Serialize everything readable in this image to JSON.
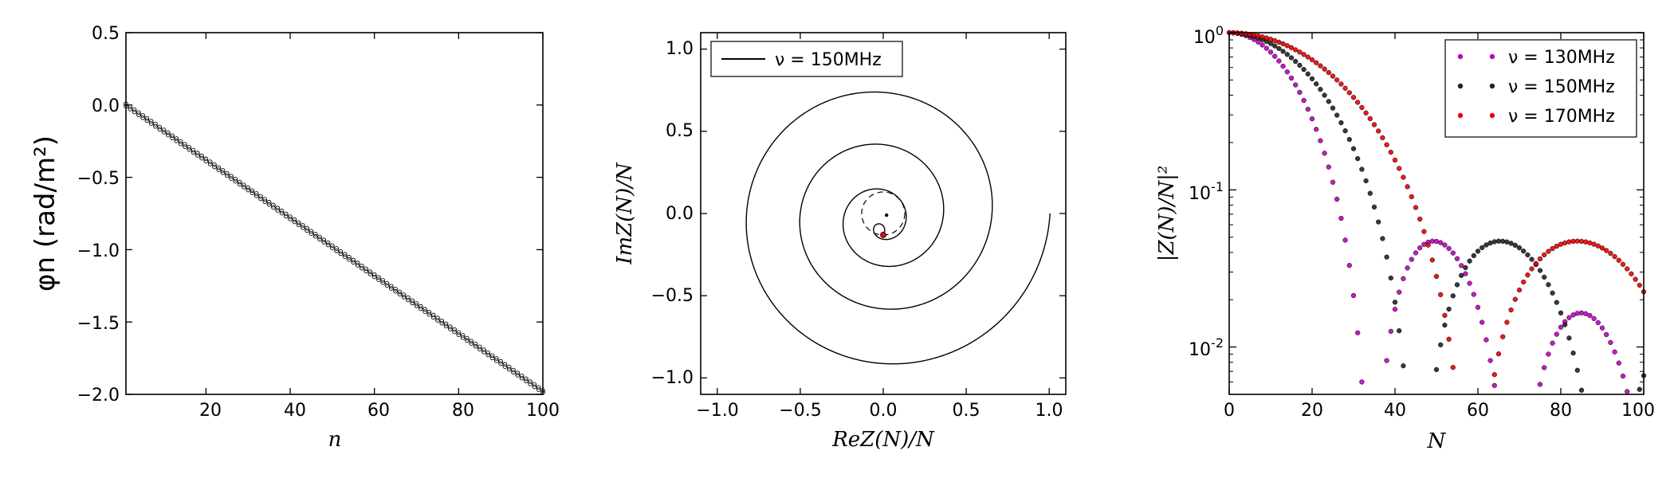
{
  "chart_data": [
    {
      "id": "phase",
      "type": "scatter",
      "xlabel": "n",
      "ylabel": "φn  (rad/m²)",
      "xlim": [
        1,
        100
      ],
      "ylim": [
        -2.0,
        0.5
      ],
      "xticks": [
        "20",
        "40",
        "60",
        "80",
        "100"
      ],
      "yticks": [
        "0.5",
        "0.0",
        "−0.5",
        "−1.0",
        "−1.5",
        "−2.0"
      ],
      "series": [
        {
          "color": "#000000",
          "x_start": 1,
          "x_end": 100,
          "step": 1,
          "y_start": 0.0,
          "y_end": -1.98,
          "marker": "open-circle"
        }
      ],
      "grid": false
    },
    {
      "id": "spiral",
      "type": "line",
      "xlabel": "ReZ(N)/N",
      "ylabel": "ImZ(N)/N",
      "xlim": [
        -1.1,
        1.1
      ],
      "ylim": [
        -1.1,
        1.1
      ],
      "xticks": [
        "−1.0",
        "−0.5",
        "0.0",
        "0.5",
        "1.0"
      ],
      "yticks": [
        "1.0",
        "0.5",
        "0.0",
        "−0.5",
        "−1.0"
      ],
      "legend": [
        {
          "label": "ν = 150MHz",
          "color": "#000000",
          "style": "solid line"
        }
      ],
      "legend_position": "top-left",
      "series": [
        {
          "name": "ν = 150MHz",
          "color": "#000000",
          "curve": "cornu-spiral",
          "start": [
            1.0,
            0.0
          ],
          "end_marker": [
            0.0,
            -0.13
          ]
        }
      ],
      "dashed_circle": {
        "center": [
          0.0,
          0.0
        ],
        "radius": 0.13
      },
      "grid": false
    },
    {
      "id": "amplitude",
      "type": "scatter",
      "xlabel": "N",
      "ylabel": "|Z(N)/N|²",
      "xlim": [
        0,
        100
      ],
      "ylim": [
        0.005,
        1.0
      ],
      "yscale": "log",
      "xticks": [
        "0",
        "20",
        "40",
        "60",
        "80",
        "100"
      ],
      "yticks": [
        "10^0",
        "10^-1",
        "10^-2"
      ],
      "legend_position": "top-right",
      "series": [
        {
          "name": "ν = 130MHz",
          "color": "#c000c0",
          "first_null": 34.5
        },
        {
          "name": "ν = 150MHz",
          "color": "#222222",
          "first_null": 45.7
        },
        {
          "name": "ν = 170MHz",
          "color": "#ee0000",
          "first_null": 58.7
        }
      ],
      "grid": false
    }
  ]
}
